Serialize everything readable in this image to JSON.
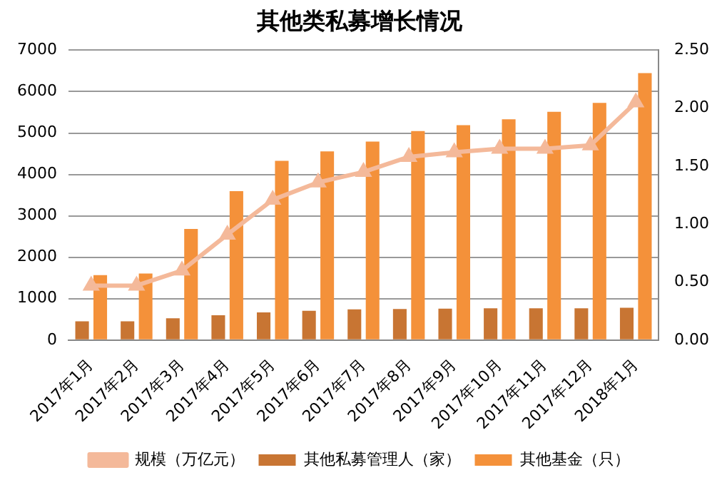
{
  "chart_data": {
    "type": "bar",
    "title": "其他类私募增长情况",
    "categories": [
      "2017年1月",
      "2017年2月",
      "2017年3月",
      "2017年4月",
      "2017年5月",
      "2017年6月",
      "2017年7月",
      "2017年8月",
      "2017年9月",
      "2017年10月",
      "2017年11月",
      "2017年12月",
      "2018年1月"
    ],
    "series": [
      {
        "name": "其他私募管理人（家）",
        "color": "#c87533",
        "values": [
          455,
          455,
          527,
          600,
          670,
          707,
          743,
          750,
          760,
          770,
          770,
          770,
          780
        ]
      },
      {
        "name": "其他基金（只）",
        "color": "#f4913a",
        "values": [
          1570,
          1606,
          2685,
          3596,
          4327,
          4555,
          4795,
          5046,
          5190,
          5334,
          5514,
          5730,
          6449
        ]
      },
      {
        "name": "规模（万亿元）",
        "type": "line",
        "axis": "y2",
        "color": "#f4b99a",
        "marker": "triangle",
        "values": [
          0.47,
          0.47,
          0.6,
          0.91,
          1.21,
          1.36,
          1.45,
          1.58,
          1.62,
          1.65,
          1.65,
          1.68,
          2.05
        ]
      }
    ],
    "ylim": [
      0,
      7000
    ],
    "yticks": [
      0,
      1000,
      2000,
      3000,
      4000,
      5000,
      6000,
      7000
    ],
    "y2lim": [
      0,
      2.5
    ],
    "y2ticks": [
      {
        "value": 0,
        "label": "0.00"
      },
      {
        "value": 0.5,
        "label": "0.50"
      },
      {
        "value": 1,
        "label": "1.00"
      },
      {
        "value": 1.5,
        "label": "1.50"
      },
      {
        "value": 2,
        "label": "2.00"
      },
      {
        "value": 2.5,
        "label": "2.50"
      }
    ],
    "grid": "y",
    "legend": "bottom"
  }
}
